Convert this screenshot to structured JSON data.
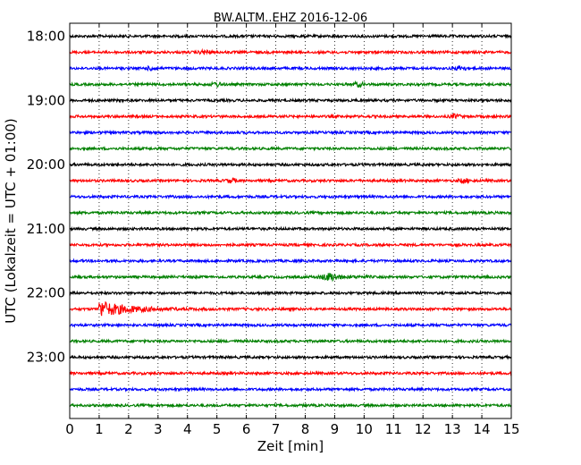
{
  "chart_data": {
    "type": "line",
    "title": "BW.ALTM..EHZ 2016-12-06",
    "xlabel": "Zeit  [min]",
    "ylabel": "UTC (Lokalzeit = UTC + 01:00)",
    "xlim": [
      0,
      15
    ],
    "x_ticks": [
      0,
      1,
      2,
      3,
      4,
      5,
      6,
      7,
      8,
      9,
      10,
      11,
      12,
      13,
      14,
      15
    ],
    "y_tick_labels": [
      "18:00",
      "19:00",
      "20:00",
      "21:00",
      "22:00",
      "23:00"
    ],
    "grid": "vertical dotted lines at each minute",
    "trace_colors": [
      "#000000",
      "#ff0000",
      "#0000ff",
      "#008000"
    ],
    "traces_per_hour": 4,
    "minutes_per_trace": 15,
    "trace_count": 24,
    "events": [
      {
        "trace_start": "22:15",
        "minute": 1.0,
        "note": "large earthquake-like signal with decaying coda until about minute 5"
      },
      {
        "trace_start": "21:45",
        "minute": 8.8,
        "note": "moderate burst"
      },
      {
        "trace_start": "19:15",
        "minute": 13.1,
        "note": "small burst"
      },
      {
        "trace_start": "20:15",
        "minute": 5.5,
        "note": "small burst"
      },
      {
        "trace_start": "20:15",
        "minute": 13.4,
        "note": "small burst"
      },
      {
        "trace_start": "18:15",
        "minute": 4.6,
        "note": "small burst"
      },
      {
        "trace_start": "18:30",
        "minute": 2.8,
        "note": "small burst"
      },
      {
        "trace_start": "18:30",
        "minute": 13.3,
        "note": "small burst"
      },
      {
        "trace_start": "18:45",
        "minute": 5.0,
        "note": "small burst"
      },
      {
        "trace_start": "18:45",
        "minute": 9.8,
        "note": "small burst"
      }
    ]
  }
}
